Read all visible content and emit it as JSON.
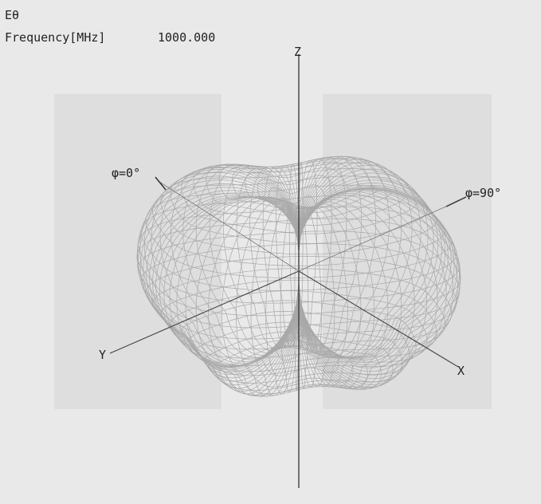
{
  "header": {
    "quantity": "Eθ",
    "frequency_label": "Frequency[MHz]",
    "frequency_value": "1000.000"
  },
  "axes": {
    "z": "Z",
    "y": "Y",
    "x": "X"
  },
  "annotations": {
    "phi0": "φ=0°",
    "phi90": "φ=90°"
  }
}
